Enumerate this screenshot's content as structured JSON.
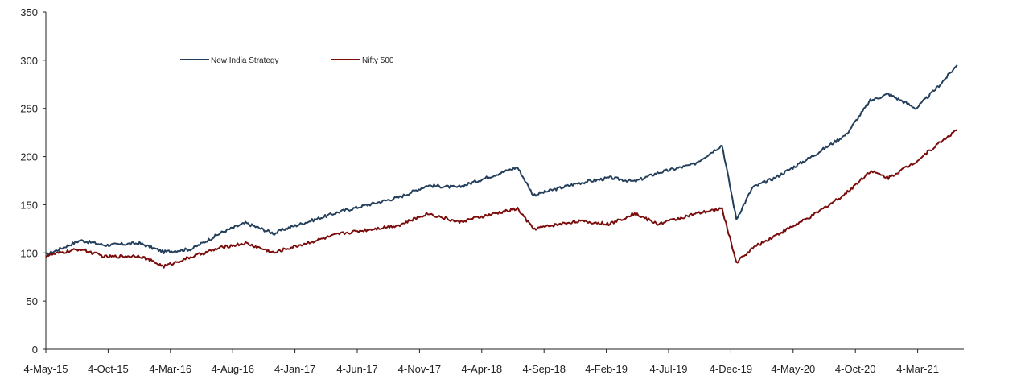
{
  "chart_data": {
    "type": "line",
    "title": "",
    "xlabel": "",
    "ylabel": "",
    "ylim": [
      0,
      350
    ],
    "y_ticks": [
      0,
      50,
      100,
      150,
      200,
      250,
      300,
      350
    ],
    "x_tick_labels": [
      "4-May-15",
      "4-Oct-15",
      "4-Mar-16",
      "4-Aug-16",
      "4-Jan-17",
      "4-Jun-17",
      "4-Nov-17",
      "4-Apr-18",
      "4-Sep-18",
      "4-Feb-19",
      "4-Jul-19",
      "4-Dec-19",
      "4-May-20",
      "4-Oct-20",
      "4-Mar-21"
    ],
    "x_range": [
      "2015-05-04",
      "2021-11-01"
    ],
    "grid": false,
    "legend_placement": "top-left inside plot, horizontal",
    "x": [
      "2015-05-04",
      "2015-08-01",
      "2015-10-04",
      "2016-01-01",
      "2016-03-04",
      "2016-05-15",
      "2016-08-04",
      "2016-10-01",
      "2016-12-15",
      "2017-01-04",
      "2017-06-04",
      "2017-11-04",
      "2018-01-15",
      "2018-04-04",
      "2018-09-04",
      "2018-10-15",
      "2019-02-04",
      "2019-05-01",
      "2019-07-04",
      "2019-09-01",
      "2019-12-04",
      "2020-02-15",
      "2020-03-23",
      "2020-05-04",
      "2020-07-01",
      "2020-10-04",
      "2021-01-01",
      "2021-03-04",
      "2021-04-20",
      "2021-07-01",
      "2021-09-01",
      "2021-10-15"
    ],
    "series": [
      {
        "name": "New India Strategy",
        "color": "#243f5c",
        "values": [
          98,
          113,
          108,
          110,
          101,
          104,
          122,
          131,
          120,
          124,
          143,
          158,
          170,
          168,
          189,
          160,
          172,
          178,
          174,
          183,
          192,
          212,
          135,
          168,
          178,
          200,
          223,
          258,
          265,
          250,
          275,
          295
        ]
      },
      {
        "name": "Nifty 500",
        "color": "#7a0c0c",
        "values": [
          97,
          104,
          96,
          97,
          86,
          96,
          106,
          110,
          100,
          103,
          120,
          129,
          141,
          132,
          146,
          125,
          133,
          130,
          141,
          130,
          140,
          146,
          90,
          105,
          118,
          138,
          162,
          185,
          178,
          195,
          215,
          228
        ]
      }
    ]
  }
}
